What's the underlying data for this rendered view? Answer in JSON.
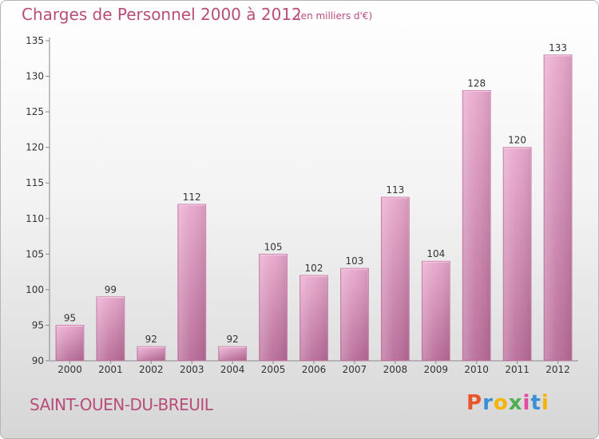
{
  "chart_data": {
    "type": "bar",
    "title": "Charges de Personnel 2000 à 2012",
    "subtitle": "(en milliers d'€)",
    "categories": [
      "2000",
      "2001",
      "2002",
      "2003",
      "2004",
      "2005",
      "2006",
      "2007",
      "2008",
      "2009",
      "2010",
      "2011",
      "2012"
    ],
    "values": [
      95,
      99,
      92,
      112,
      92,
      105,
      102,
      103,
      113,
      104,
      128,
      120,
      133
    ],
    "ylim": [
      90,
      135
    ],
    "yticks": [
      90,
      95,
      100,
      105,
      110,
      115,
      120,
      125,
      130,
      135
    ],
    "grid": false,
    "bar_color": "#d98fba",
    "text_color": "#b84c7a"
  },
  "footer": {
    "commune": "SAINT-OUEN-DU-BREUIL",
    "logo_text": "Proxiti",
    "logo_colors": [
      "#e8562a",
      "#3a8fd6",
      "#f4b400",
      "#4cae4f",
      "#e24ba0",
      "#3a8fd6",
      "#f4b400"
    ]
  }
}
